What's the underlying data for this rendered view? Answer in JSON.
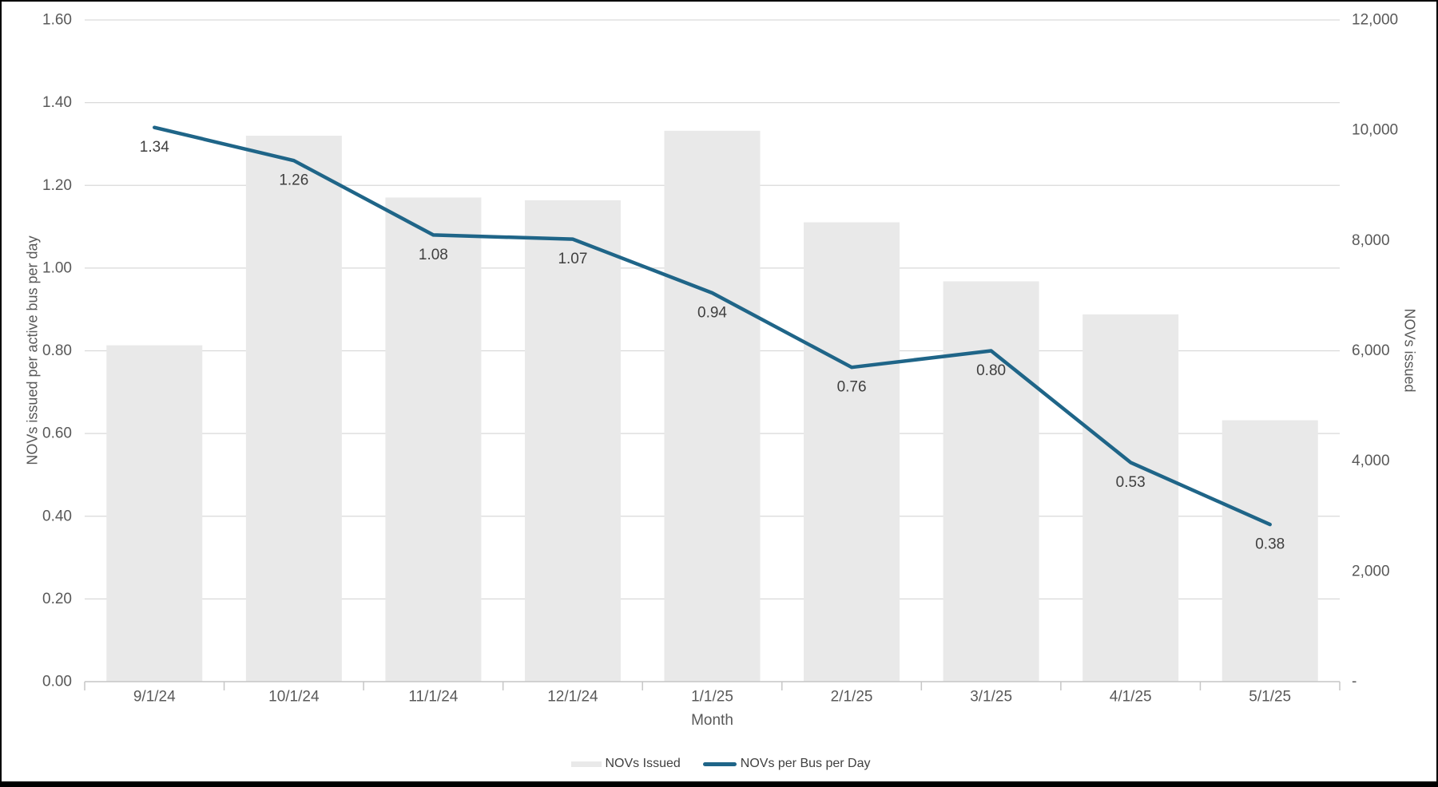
{
  "chart_data": {
    "type": "combo-bar-line",
    "title": "",
    "categories": [
      "9/1/24",
      "10/1/24",
      "11/1/24",
      "12/1/24",
      "1/1/25",
      "2/1/25",
      "3/1/25",
      "4/1/25",
      "5/1/25"
    ],
    "series": [
      {
        "name": "NOVs Issued",
        "type": "bar",
        "axis": "right",
        "color": "#E9E9E9",
        "values": [
          6100,
          9900,
          8780,
          8730,
          9990,
          8330,
          7260,
          6660,
          4740
        ]
      },
      {
        "name": "NOVs per Bus per Day",
        "type": "line",
        "axis": "left",
        "color": "#1F6588",
        "values": [
          1.34,
          1.26,
          1.08,
          1.07,
          0.94,
          0.76,
          0.8,
          0.53,
          0.38
        ],
        "data_labels": [
          "1.34",
          "1.26",
          "1.08",
          "1.07",
          "0.94",
          "0.76",
          "0.80",
          "0.53",
          "0.38"
        ]
      }
    ],
    "left_axis": {
      "label": "NOVs issued per active bus per day",
      "min": 0,
      "max": 1.6,
      "step": 0.2,
      "tick_labels": [
        "0.00",
        "0.20",
        "0.40",
        "0.60",
        "0.80",
        "1.00",
        "1.20",
        "1.40",
        "1.60"
      ]
    },
    "right_axis": {
      "label": "NOVs issued",
      "min": 0,
      "max": 12000,
      "step": 2000,
      "tick_labels": [
        "-",
        "2,000",
        "4,000",
        "6,000",
        "8,000",
        "10,000",
        "12,000"
      ]
    },
    "x_axis": {
      "label": "Month"
    },
    "legend": {
      "position": "bottom",
      "entries": [
        "NOVs Issued",
        "NOVs per Bus per Day"
      ]
    },
    "grid": "horizontal"
  },
  "colors": {
    "bar": "#E9E9E9",
    "line": "#1F6588",
    "gridline": "#D9D9D9",
    "axis_line": "#C6C6C6",
    "tick_text": "#595959",
    "data_label_text": "#3F3F3F",
    "legend_text": "#404040",
    "frame": "#000000"
  }
}
